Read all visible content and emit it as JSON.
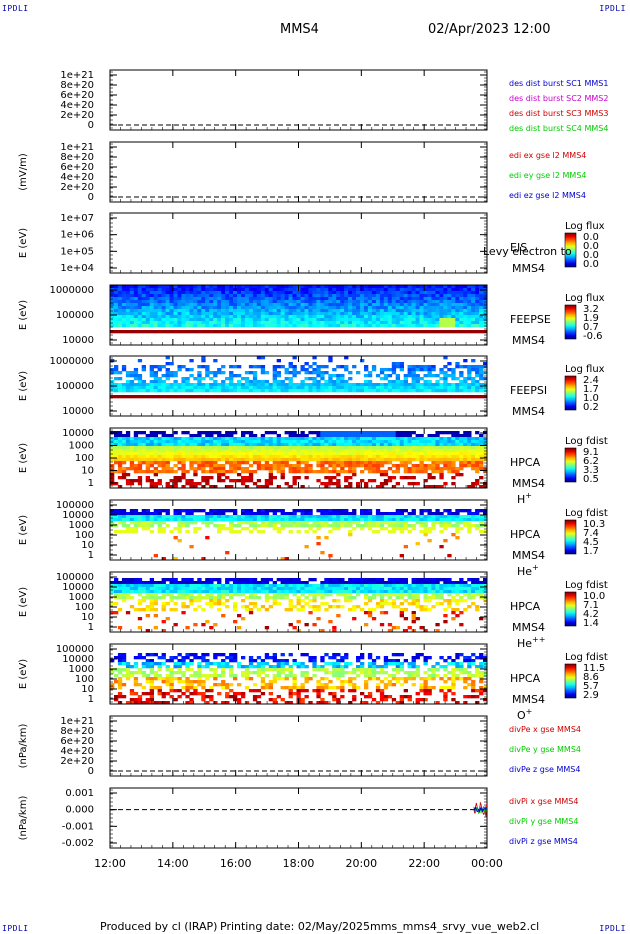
{
  "header": {
    "corner_tl": "IPDLI",
    "corner_tr": "IPDLI",
    "corner_bl": "IPDLI",
    "corner_br": "IPDLI",
    "title": "MMS4",
    "datetime": "02/Apr/2023 12:00"
  },
  "footer": {
    "produced": "Produced by cl (IRAP)",
    "printing": "Printing date: 02/May/2025",
    "file": "mms_mms4_srvy_vue_web2.cl"
  },
  "x_axis": {
    "ticks": [
      "12:00",
      "14:00",
      "16:00",
      "18:00",
      "20:00",
      "22:00",
      "00:00"
    ]
  },
  "colors": {
    "red": "#cc0000",
    "magenta": "#cc00cc",
    "green": "#00cc00",
    "blue": "#0000cc",
    "frame": "#000000",
    "white": "#ffffff"
  },
  "chart_data": [
    {
      "id": "p1",
      "type": "line",
      "ylabel": "",
      "yticks": [
        "1e+21",
        "8e+20",
        "6e+20",
        "4e+20",
        "2e+20",
        "0"
      ],
      "legend": [
        {
          "text": "des dist burst SC1 MMS1",
          "color": "#0000cc"
        },
        {
          "text": "des dist burst SC2 MMS2",
          "color": "#cc00cc"
        },
        {
          "text": "des dist burst SC3 MMS3",
          "color": "#cc0000"
        },
        {
          "text": "des dist burst SC4 MMS4",
          "color": "#00cc00"
        }
      ],
      "zero_line": true
    },
    {
      "id": "p2",
      "type": "line",
      "ylabel": "(mV/m)",
      "yticks": [
        "1e+21",
        "8e+20",
        "6e+20",
        "4e+20",
        "2e+20",
        "0"
      ],
      "legend": [
        {
          "text": "edi ex gse l2 MMS4",
          "color": "#cc0000"
        },
        {
          "text": "edi ey gse l2 MMS4",
          "color": "#00cc00"
        },
        {
          "text": "edi ez gse l2 MMS4",
          "color": "#0000cc"
        }
      ],
      "zero_line": true
    },
    {
      "id": "p3",
      "type": "heatmap",
      "ylabel": "E (eV)",
      "yticks": [
        "1e+07",
        "1e+06",
        "1e+05",
        "1e+04"
      ],
      "instrument": [
        "EIS",
        "MMS4"
      ],
      "cbar_title": "Log flux",
      "cbar_ticks": [
        "0.0",
        "0.0",
        "0.0",
        "0.0"
      ],
      "overlay": "Levy electron to",
      "spectrum": "none"
    },
    {
      "id": "p4",
      "type": "heatmap",
      "ylabel": "E (eV)",
      "yticks": [
        "1000000",
        "100000",
        "10000"
      ],
      "instrument": [
        "FEEPSE",
        "MMS4"
      ],
      "cbar_title": "Log flux",
      "cbar_ticks": [
        "3.2",
        "1.9",
        "0.7",
        "-0.6"
      ],
      "spectrum": "feepse"
    },
    {
      "id": "p5",
      "type": "heatmap",
      "ylabel": "E (eV)",
      "yticks": [
        "1000000",
        "100000",
        "10000"
      ],
      "instrument": [
        "FEEPSI",
        "MMS4"
      ],
      "cbar_title": "Log flux",
      "cbar_ticks": [
        "2.4",
        "1.7",
        "1.0",
        "0.2"
      ],
      "spectrum": "feepsi"
    },
    {
      "id": "p6",
      "type": "heatmap",
      "ylabel": "E (eV)",
      "yticks": [
        "10000",
        "1000",
        "100",
        "10",
        "1"
      ],
      "instrument": [
        "HPCA",
        "MMS4"
      ],
      "species": "H",
      "charge": "+",
      "cbar_title": "Log fdist",
      "cbar_ticks": [
        "9.1",
        "6.2",
        "3.3",
        "0.5"
      ],
      "spectrum": "hplus"
    },
    {
      "id": "p7",
      "type": "heatmap",
      "ylabel": "E (eV)",
      "yticks": [
        "100000",
        "10000",
        "1000",
        "100",
        "10",
        "1"
      ],
      "instrument": [
        "HPCA",
        "MMS4"
      ],
      "species": "He",
      "charge": "+",
      "cbar_title": "Log fdist",
      "cbar_ticks": [
        "10.3",
        "7.4",
        "4.5",
        "1.7"
      ],
      "spectrum": "heplus"
    },
    {
      "id": "p8",
      "type": "heatmap",
      "ylabel": "E (eV)",
      "yticks": [
        "100000",
        "10000",
        "1000",
        "100",
        "10",
        "1"
      ],
      "instrument": [
        "HPCA",
        "MMS4"
      ],
      "species": "He",
      "charge": "++",
      "cbar_title": "Log fdist",
      "cbar_ticks": [
        "10.0",
        "7.1",
        "4.2",
        "1.4"
      ],
      "spectrum": "heplusplus"
    },
    {
      "id": "p9",
      "type": "heatmap",
      "ylabel": "E (eV)",
      "yticks": [
        "100000",
        "10000",
        "1000",
        "100",
        "10",
        "1"
      ],
      "instrument": [
        "HPCA",
        "MMS4"
      ],
      "species": "O",
      "charge": "+",
      "cbar_title": "Log fdist",
      "cbar_ticks": [
        "11.5",
        "8.6",
        "5.7",
        "2.9"
      ],
      "spectrum": "oplus"
    },
    {
      "id": "p10",
      "type": "line",
      "ylabel": "(nPa/km)",
      "yticks": [
        "1e+21",
        "8e+20",
        "6e+20",
        "4e+20",
        "2e+20",
        "0"
      ],
      "legend": [
        {
          "text": "divPe x gse MMS4",
          "color": "#cc0000"
        },
        {
          "text": "divPe y gse MMS4",
          "color": "#00cc00"
        },
        {
          "text": "divPe z gse MMS4",
          "color": "#0000cc"
        }
      ],
      "zero_line": true
    },
    {
      "id": "p11",
      "type": "line",
      "ylabel": "(nPa/km)",
      "yticks": [
        "0.001",
        "0.000",
        "-0.001",
        "-0.002"
      ],
      "legend": [
        {
          "text": "divPi x gse MMS4",
          "color": "#cc0000"
        },
        {
          "text": "divPi y gse MMS4",
          "color": "#00cc00"
        },
        {
          "text": "divPi z gse MMS4",
          "color": "#0000cc"
        }
      ],
      "zero_line": true,
      "burst": {
        "x_start": "23:35",
        "x_end": "00:00",
        "ylim": [
          -0.0005,
          0.0005
        ]
      }
    }
  ]
}
